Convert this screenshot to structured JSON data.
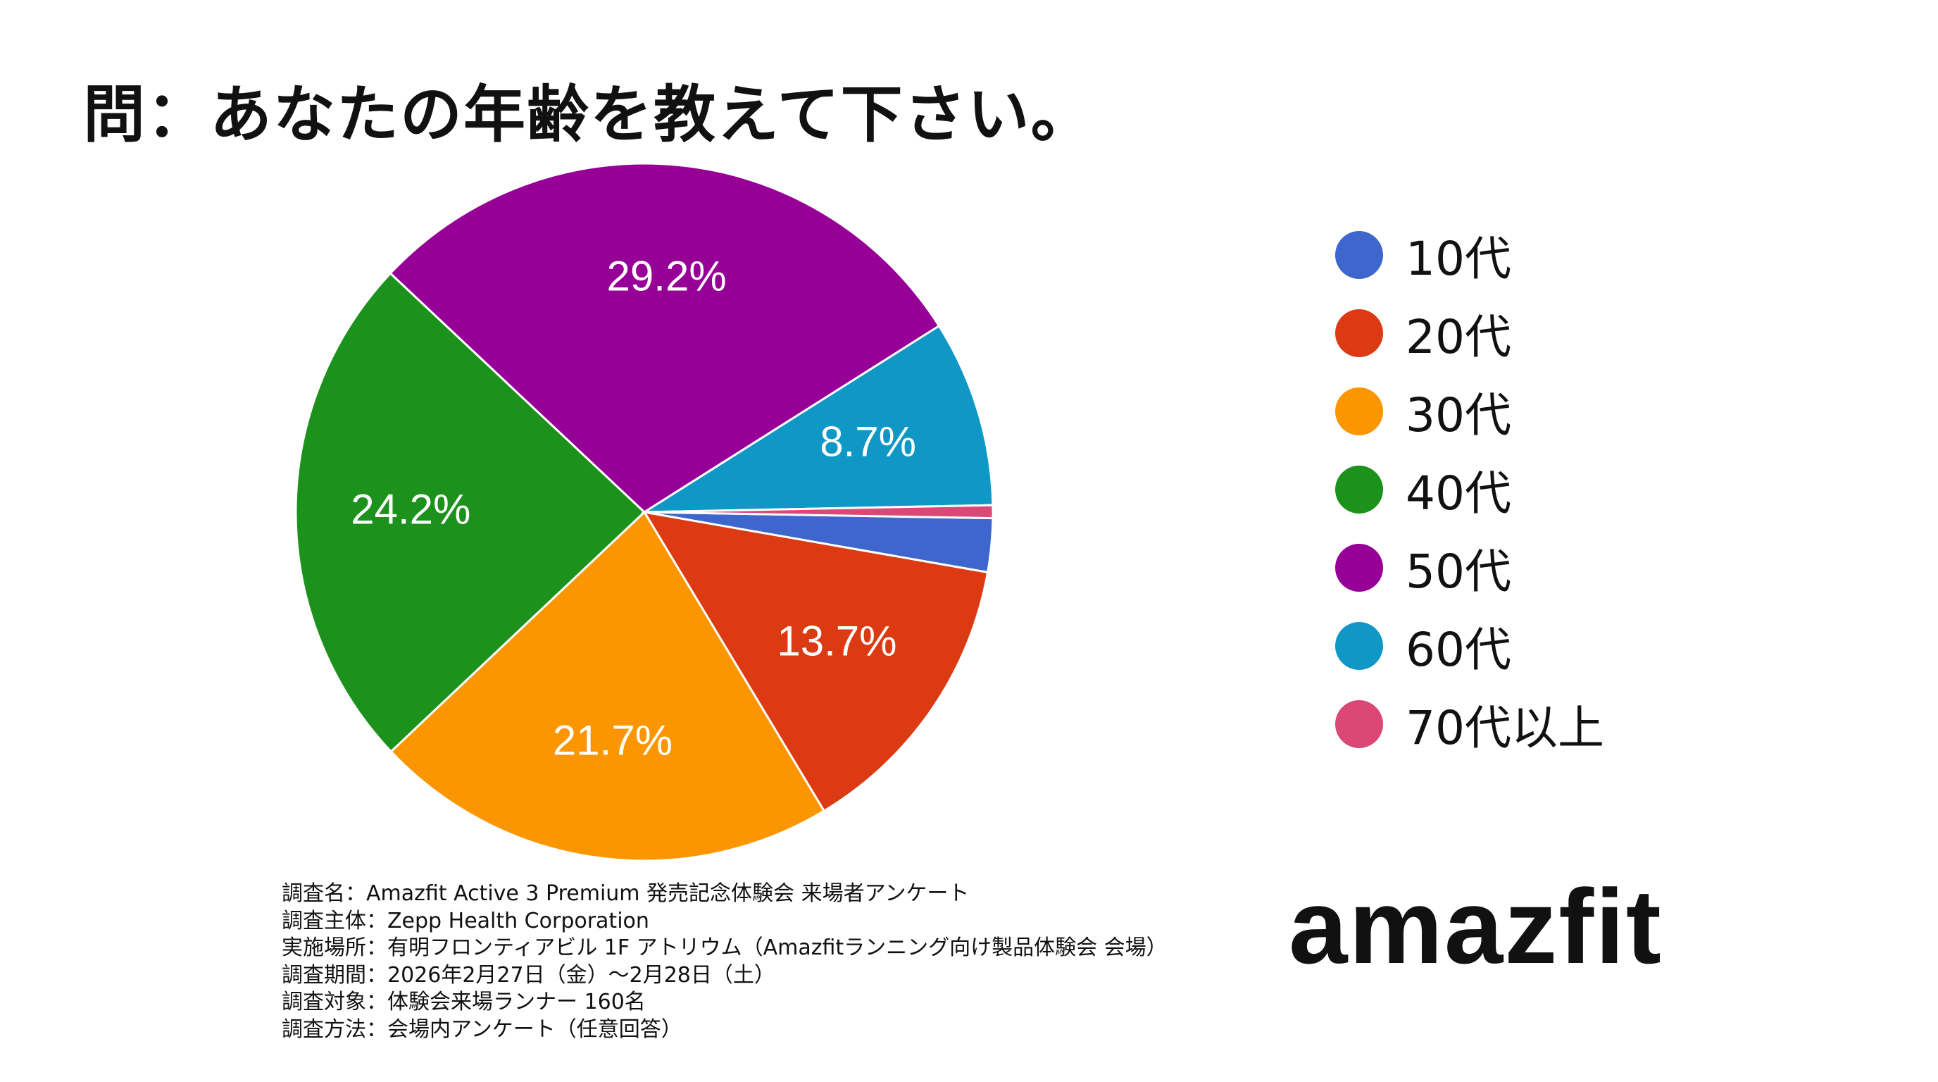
{
  "title": "問：あなたの年齢を教えて下さい。",
  "chart_data": {
    "type": "pie",
    "title": "問：あなたの年齢を教えて下さい。",
    "slices": [
      {
        "label": "10代",
        "value": 2.5,
        "display": "",
        "color": "#3f66cc"
      },
      {
        "label": "20代",
        "value": 13.7,
        "display": "13.7%",
        "color": "#dc3a12"
      },
      {
        "label": "30代",
        "value": 21.7,
        "display": "21.7%",
        "color": "#fb9500"
      },
      {
        "label": "40代",
        "value": 24.2,
        "display": "24.2%",
        "color": "#1c921c"
      },
      {
        "label": "50代",
        "value": 29.2,
        "display": "29.2%",
        "color": "#960096"
      },
      {
        "label": "60代",
        "value": 8.7,
        "display": "8.7%",
        "color": "#0f98c5"
      },
      {
        "label": "70代以上",
        "value": 0.6,
        "display": "",
        "color": "#dc4876"
      }
    ],
    "legend_position": "right"
  },
  "survey": {
    "lines": [
      "調査名：Amazfit Active 3 Premium 発売記念体験会 来場者アンケート",
      "調査主体：Zepp Health Corporation",
      "実施場所：有明フロンティアビル 1F アトリウム（Amazfitランニング向け製品体験会 会場）",
      "調査期間：2026年2月27日（金）～2月28日（土）",
      "調査対象：体験会来場ランナー 160名",
      "調査方法：会場内アンケート（任意回答）"
    ]
  },
  "logo": {
    "text": "amazfit"
  }
}
